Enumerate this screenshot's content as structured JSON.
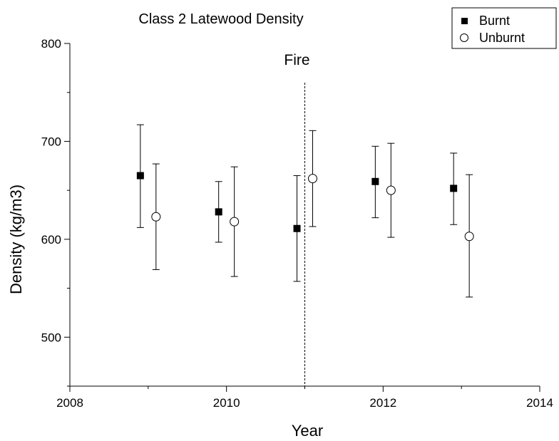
{
  "chart_data": {
    "type": "scatter",
    "title": "Class 2 Latewood Density",
    "xlabel": "Year",
    "ylabel": "Density (kg/m3)",
    "xlim": [
      2008,
      2014
    ],
    "ylim": [
      450,
      800
    ],
    "x_ticks": [
      2008,
      2010,
      2012,
      2014
    ],
    "y_ticks": [
      500,
      600,
      700,
      800
    ],
    "grid": false,
    "legend": "top-right",
    "annotations": [
      {
        "text": "Fire",
        "x": 2011
      }
    ],
    "series": [
      {
        "name": "Burnt",
        "marker": "filled-square",
        "color": "#000000",
        "points": [
          {
            "x": 2008.9,
            "y": 665,
            "low": 612,
            "high": 717
          },
          {
            "x": 2009.9,
            "y": 628,
            "low": 597,
            "high": 659
          },
          {
            "x": 2010.9,
            "y": 611,
            "low": 557,
            "high": 665
          },
          {
            "x": 2011.9,
            "y": 659,
            "low": 622,
            "high": 695
          },
          {
            "x": 2012.9,
            "y": 652,
            "low": 615,
            "high": 688
          }
        ]
      },
      {
        "name": "Unburnt",
        "marker": "open-circle",
        "color": "#000000",
        "points": [
          {
            "x": 2009.1,
            "y": 623,
            "low": 569,
            "high": 677
          },
          {
            "x": 2010.1,
            "y": 618,
            "low": 562,
            "high": 674
          },
          {
            "x": 2011.1,
            "y": 662,
            "low": 613,
            "high": 711
          },
          {
            "x": 2012.1,
            "y": 650,
            "low": 602,
            "high": 698
          },
          {
            "x": 2013.1,
            "y": 603,
            "low": 541,
            "high": 666
          }
        ]
      }
    ]
  }
}
